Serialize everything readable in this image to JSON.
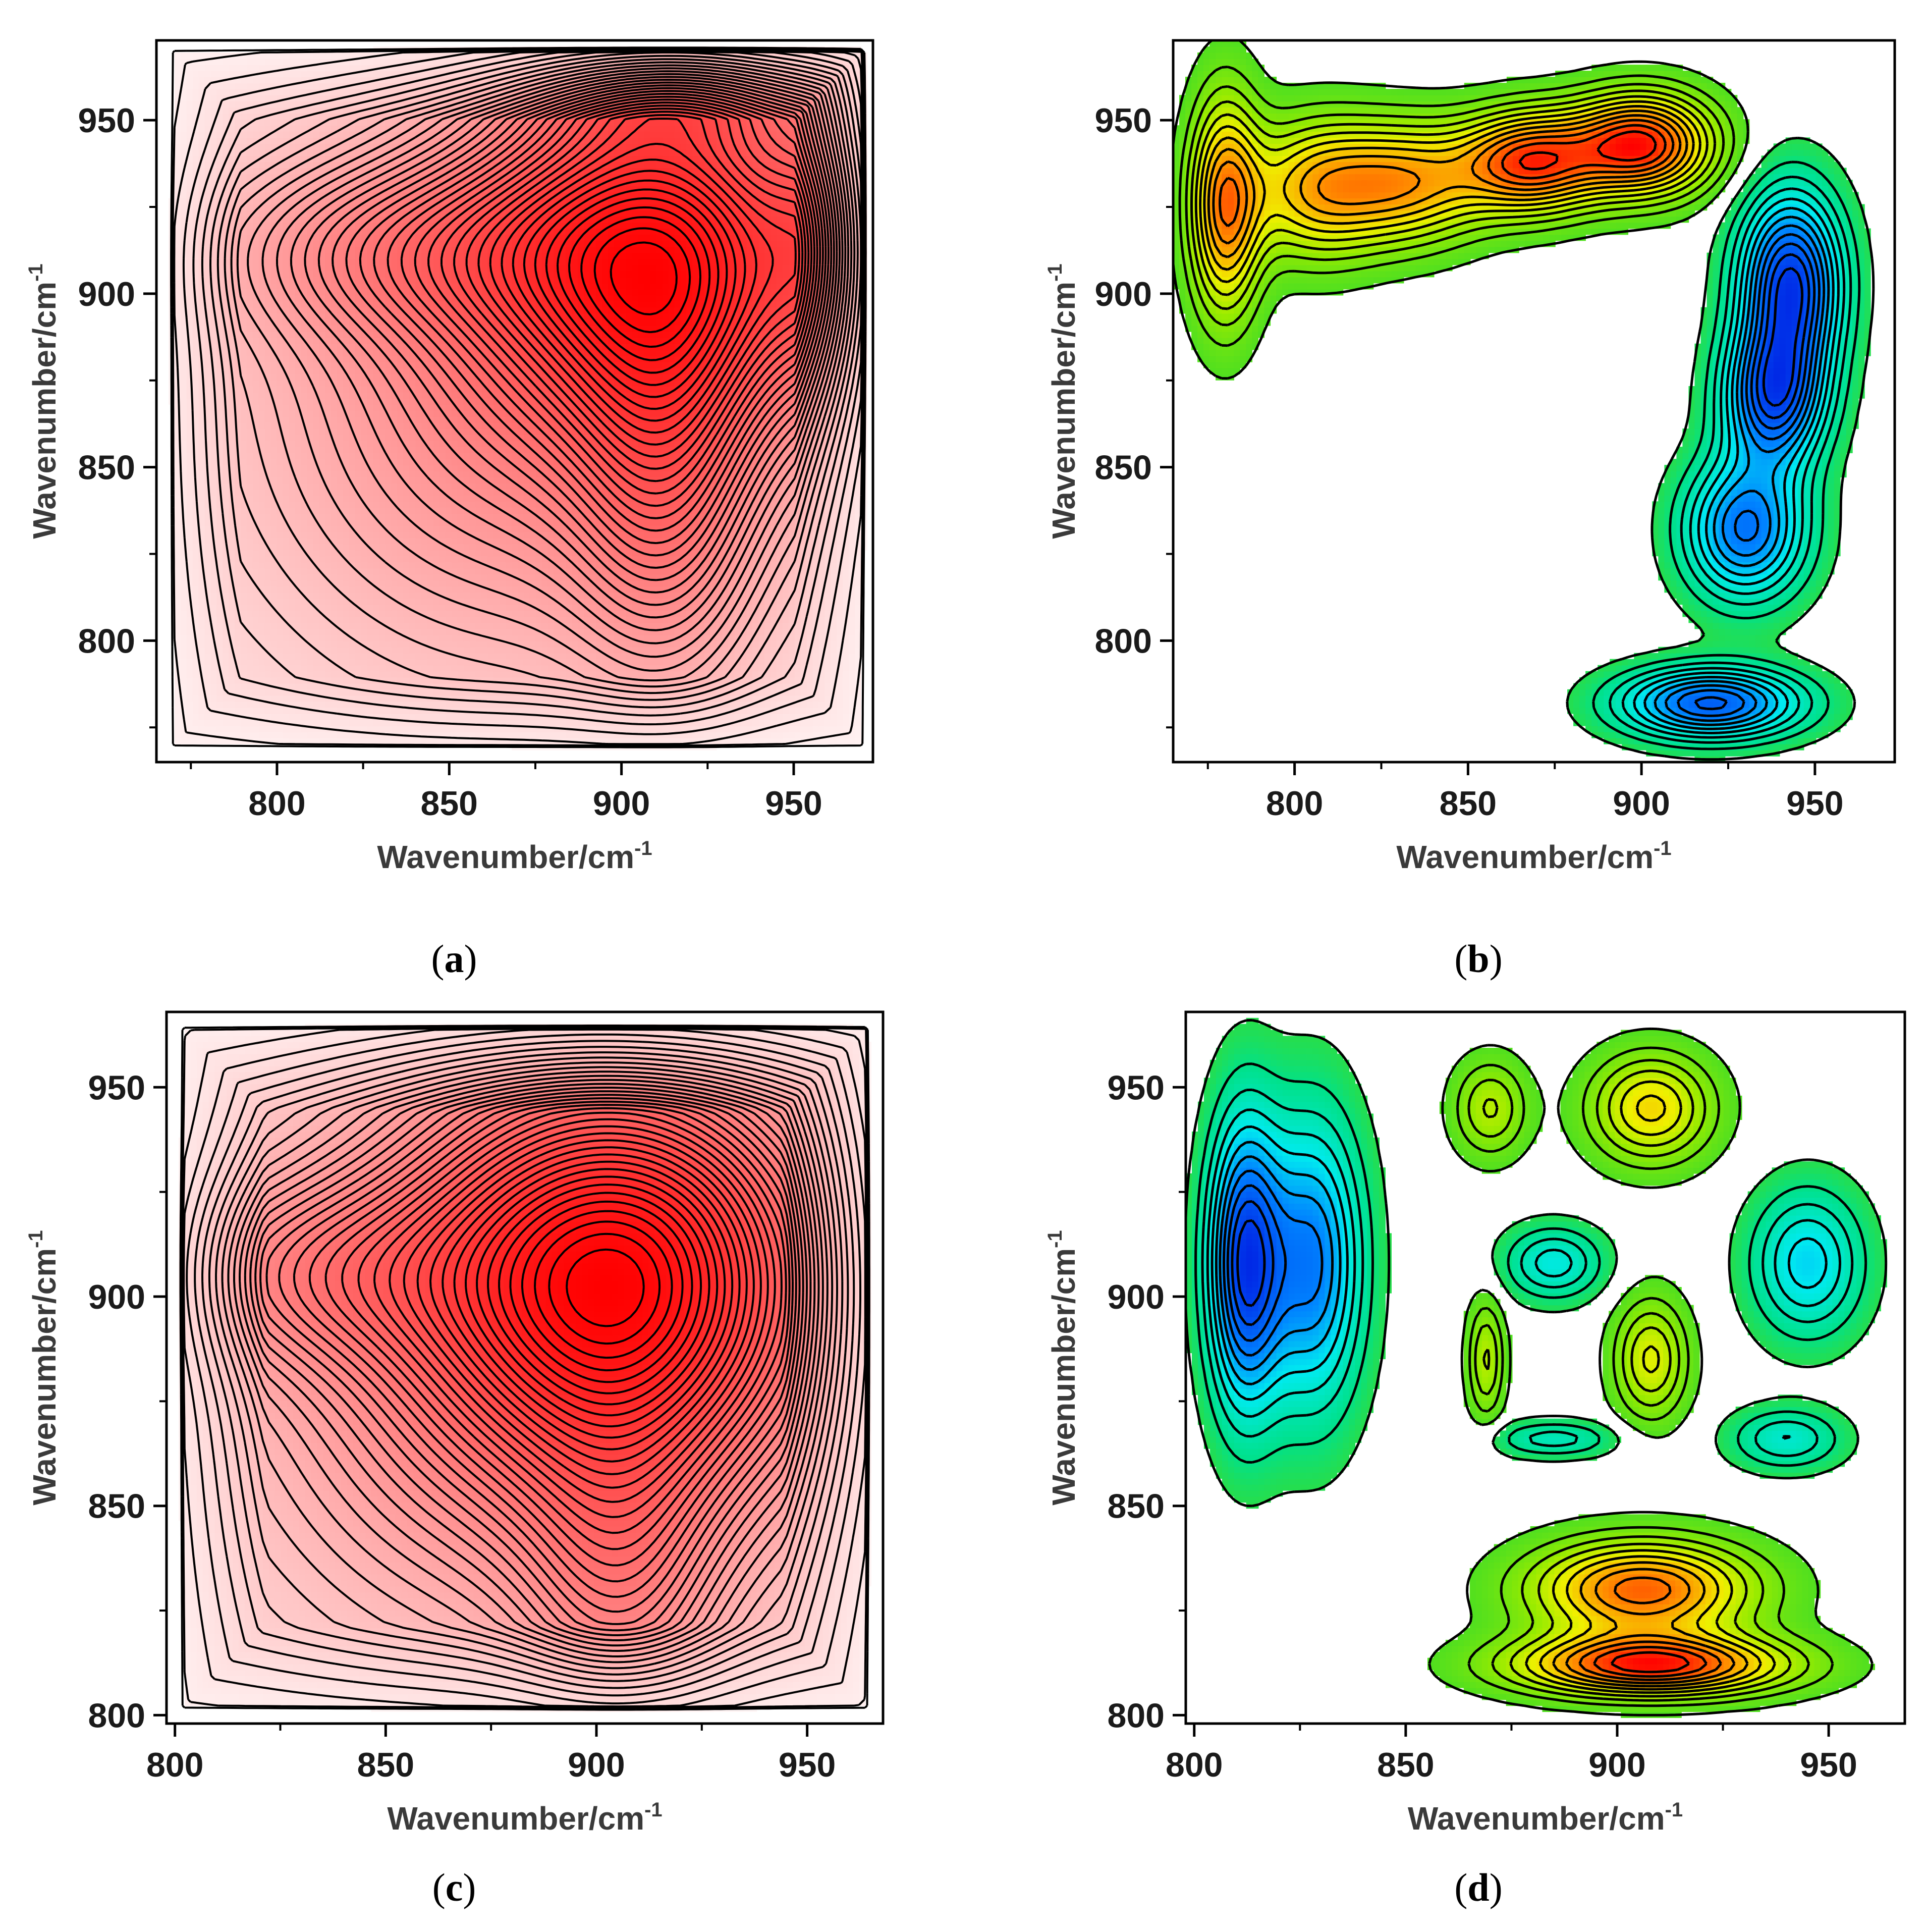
{
  "figure": {
    "captions": [
      "a",
      "b",
      "c",
      "d"
    ]
  },
  "chart_data": [
    {
      "id": "a",
      "type": "contour",
      "title": "",
      "caption": "a",
      "xlabel": "Wavenumber/cm",
      "xlabel_sup": "-1",
      "ylabel": "Wavenumber/cm",
      "ylabel_sup": "-1",
      "xlim": [
        765,
        973
      ],
      "ylim": [
        765,
        973
      ],
      "xticks": [
        800,
        850,
        900,
        950
      ],
      "yticks": [
        800,
        850,
        900,
        950
      ],
      "colormap": "white-to-red",
      "line_color": "#000000",
      "levels": 40,
      "peaks": [
        {
          "x": 913,
          "y": 913,
          "amp": 1.0,
          "sx": 38,
          "sy": 38,
          "note": "main auto peak"
        },
        {
          "x": 918,
          "y": 960,
          "amp": 0.35,
          "sx": 28,
          "sy": 12
        },
        {
          "x": 960,
          "y": 915,
          "amp": 0.35,
          "sx": 12,
          "sy": 28
        },
        {
          "x": 913,
          "y": 840,
          "amp": 0.35,
          "sx": 18,
          "sy": 40
        },
        {
          "x": 835,
          "y": 913,
          "amp": 0.3,
          "sx": 40,
          "sy": 18
        },
        {
          "x": 870,
          "y": 870,
          "amp": 0.4,
          "sx": 60,
          "sy": 60
        },
        {
          "x": 870,
          "y": 870,
          "amp": 0.18,
          "sx": 110,
          "sy": 110
        }
      ],
      "boundary": {
        "x": [
          770,
          970
        ],
        "y": [
          770,
          970
        ]
      }
    },
    {
      "id": "b",
      "type": "contour",
      "title": "",
      "caption": "b",
      "xlabel": "Wavenumber/cm",
      "xlabel_sup": "-1",
      "ylabel": "Wavenumber/cm",
      "ylabel_sup": "-1",
      "xlim": [
        765,
        973
      ],
      "ylim": [
        765,
        973
      ],
      "xticks": [
        800,
        850,
        900,
        950
      ],
      "yticks": [
        800,
        850,
        900,
        950
      ],
      "colormap": "blue-cyan-green-yellow-red",
      "line_color": "#000000",
      "levels": 24,
      "peaks": [
        {
          "x": 900,
          "y": 943,
          "amp": 1.0,
          "sx": 14,
          "sy": 10
        },
        {
          "x": 868,
          "y": 938,
          "amp": 0.9,
          "sx": 14,
          "sy": 10
        },
        {
          "x": 832,
          "y": 932,
          "amp": 0.65,
          "sx": 16,
          "sy": 12
        },
        {
          "x": 805,
          "y": 930,
          "amp": 0.55,
          "sx": 14,
          "sy": 14
        },
        {
          "x": 780,
          "y": 925,
          "amp": 0.75,
          "sx": 7,
          "sy": 22
        },
        {
          "x": 943,
          "y": 903,
          "amp": -1.0,
          "sx": 10,
          "sy": 18
        },
        {
          "x": 938,
          "y": 870,
          "amp": -0.85,
          "sx": 10,
          "sy": 14
        },
        {
          "x": 930,
          "y": 832,
          "amp": -0.75,
          "sx": 12,
          "sy": 14
        },
        {
          "x": 920,
          "y": 782,
          "amp": -0.85,
          "sx": 18,
          "sy": 7
        }
      ],
      "regions": [
        "upper-left positive lobe",
        "lower-right negative lobe",
        "gap along diagonal"
      ]
    },
    {
      "id": "c",
      "type": "contour",
      "title": "",
      "caption": "c",
      "xlabel": "Wavenumber/cm",
      "xlabel_sup": "-1",
      "ylabel": "Wavenumber/cm",
      "ylabel_sup": "-1",
      "xlim": [
        798,
        968
      ],
      "ylim": [
        798,
        968
      ],
      "xticks": [
        800,
        850,
        900,
        950
      ],
      "yticks": [
        800,
        850,
        900,
        950
      ],
      "colormap": "white-to-red",
      "line_color": "#000000",
      "levels": 40,
      "peaks": [
        {
          "x": 906,
          "y": 906,
          "amp": 1.0,
          "sx": 34,
          "sy": 34,
          "note": "main auto peak"
        },
        {
          "x": 906,
          "y": 830,
          "amp": 0.3,
          "sx": 16,
          "sy": 28
        },
        {
          "x": 830,
          "y": 906,
          "amp": 0.3,
          "sx": 28,
          "sy": 16
        },
        {
          "x": 885,
          "y": 885,
          "amp": 0.4,
          "sx": 55,
          "sy": 55
        },
        {
          "x": 885,
          "y": 885,
          "amp": 0.18,
          "sx": 100,
          "sy": 100
        }
      ],
      "boundary": {
        "x": [
          802,
          964
        ],
        "y": [
          802,
          964
        ]
      }
    },
    {
      "id": "d",
      "type": "contour",
      "title": "",
      "caption": "d",
      "xlabel": "Wavenumber/cm",
      "xlabel_sup": "-1",
      "ylabel": "Wavenumber/cm",
      "ylabel_sup": "-1",
      "xlim": [
        798,
        968
      ],
      "ylim": [
        798,
        968
      ],
      "xticks": [
        800,
        850,
        900,
        950
      ],
      "yticks": [
        800,
        850,
        900,
        950
      ],
      "colormap": "blue-cyan-green-yellow-red",
      "line_color": "#000000",
      "levels": 22,
      "peaks": [
        {
          "x": 908,
          "y": 812,
          "amp": 1.0,
          "sx": 22,
          "sy": 5
        },
        {
          "x": 906,
          "y": 830,
          "amp": 0.85,
          "sx": 18,
          "sy": 8
        },
        {
          "x": 908,
          "y": 945,
          "amp": 0.55,
          "sx": 10,
          "sy": 9
        },
        {
          "x": 870,
          "y": 945,
          "amp": 0.35,
          "sx": 6,
          "sy": 8
        },
        {
          "x": 908,
          "y": 885,
          "amp": 0.45,
          "sx": 6,
          "sy": 10
        },
        {
          "x": 869,
          "y": 885,
          "amp": 0.35,
          "sx": 3,
          "sy": 10
        },
        {
          "x": 812,
          "y": 908,
          "amp": -1.0,
          "sx": 6,
          "sy": 24
        },
        {
          "x": 828,
          "y": 908,
          "amp": -0.75,
          "sx": 8,
          "sy": 24
        },
        {
          "x": 945,
          "y": 908,
          "amp": -0.5,
          "sx": 9,
          "sy": 12
        },
        {
          "x": 940,
          "y": 866,
          "amp": -0.35,
          "sx": 9,
          "sy": 5
        },
        {
          "x": 885,
          "y": 908,
          "amp": -0.4,
          "sx": 8,
          "sy": 6
        },
        {
          "x": 885,
          "y": 866,
          "amp": -0.3,
          "sx": 10,
          "sy": 3
        }
      ]
    }
  ]
}
